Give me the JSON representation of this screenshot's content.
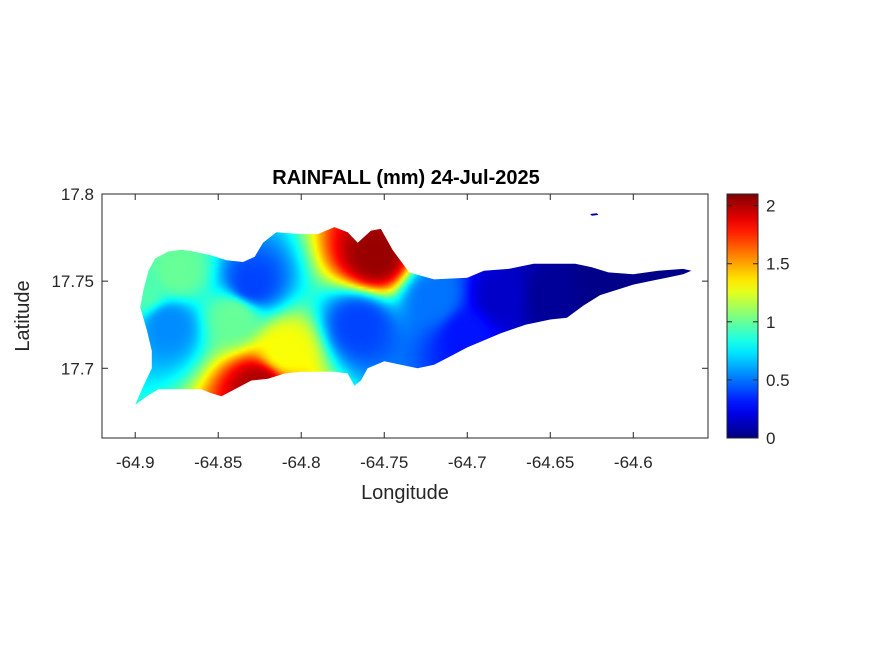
{
  "chart_data": {
    "type": "heatmap",
    "title": "RAINFALL (mm) 24-Jul-2025",
    "xlabel": "Longitude",
    "ylabel": "Latitude",
    "xlim": [
      -64.92,
      -64.555
    ],
    "ylim": [
      17.66,
      17.8
    ],
    "xticks": [
      -64.9,
      -64.85,
      -64.8,
      -64.75,
      -64.7,
      -64.65,
      -64.6
    ],
    "xtick_labels": [
      "-64.9",
      "-64.85",
      "-64.8",
      "-64.75",
      "-64.7",
      "-64.65",
      "-64.6"
    ],
    "yticks": [
      17.7,
      17.75,
      17.8
    ],
    "ytick_labels": [
      "17.7",
      "17.75",
      "17.8"
    ],
    "colormap": "jet",
    "colorbar": {
      "range": [
        0,
        2.1
      ],
      "ticks": [
        0,
        0.5,
        1,
        1.5,
        2
      ],
      "tick_labels": [
        "0",
        "0.5",
        "1",
        "1.5",
        "2"
      ]
    },
    "legend": "none",
    "grid": false,
    "z_unit": "mm",
    "rainfall_peaks": [
      {
        "lon": -64.755,
        "lat": 17.764,
        "value": 2.05
      },
      {
        "lon": -64.825,
        "lat": 17.69,
        "value": 2.0
      },
      {
        "lon": -64.81,
        "lat": 17.71,
        "value": 1.3
      },
      {
        "lon": -64.84,
        "lat": 17.73,
        "value": 1.0
      },
      {
        "lon": -64.875,
        "lat": 17.755,
        "value": 1.0
      },
      {
        "lon": -64.895,
        "lat": 17.745,
        "value": 0.95
      },
      {
        "lon": -64.83,
        "lat": 17.748,
        "value": 0.4
      },
      {
        "lon": -64.88,
        "lat": 17.725,
        "value": 0.55
      },
      {
        "lon": -64.765,
        "lat": 17.725,
        "value": 0.4
      },
      {
        "lon": -64.72,
        "lat": 17.74,
        "value": 0.5
      },
      {
        "lon": -64.7,
        "lat": 17.72,
        "value": 0.3
      },
      {
        "lon": -64.68,
        "lat": 17.74,
        "value": 0.15
      },
      {
        "lon": -64.65,
        "lat": 17.74,
        "value": 0.05
      },
      {
        "lon": -64.62,
        "lat": 17.745,
        "value": 0.02
      },
      {
        "lon": -64.58,
        "lat": 17.753,
        "value": 0.02
      }
    ],
    "island_outline": [
      [
        -64.9,
        17.679
      ],
      [
        -64.893,
        17.684
      ],
      [
        -64.886,
        17.688
      ],
      [
        -64.875,
        17.688
      ],
      [
        -64.86,
        17.688
      ],
      [
        -64.855,
        17.686
      ],
      [
        -64.848,
        17.684
      ],
      [
        -64.84,
        17.688
      ],
      [
        -64.83,
        17.693
      ],
      [
        -64.82,
        17.694
      ],
      [
        -64.81,
        17.697
      ],
      [
        -64.8,
        17.698
      ],
      [
        -64.79,
        17.698
      ],
      [
        -64.78,
        17.698
      ],
      [
        -64.772,
        17.697
      ],
      [
        -64.768,
        17.69
      ],
      [
        -64.764,
        17.693
      ],
      [
        -64.76,
        17.7
      ],
      [
        -64.75,
        17.704
      ],
      [
        -64.74,
        17.702
      ],
      [
        -64.73,
        17.7
      ],
      [
        -64.72,
        17.702
      ],
      [
        -64.71,
        17.707
      ],
      [
        -64.7,
        17.712
      ],
      [
        -64.69,
        17.716
      ],
      [
        -64.68,
        17.72
      ],
      [
        -64.665,
        17.725
      ],
      [
        -64.65,
        17.728
      ],
      [
        -64.64,
        17.729
      ],
      [
        -64.63,
        17.736
      ],
      [
        -64.62,
        17.742
      ],
      [
        -64.61,
        17.745
      ],
      [
        -64.6,
        17.748
      ],
      [
        -64.59,
        17.75
      ],
      [
        -64.58,
        17.752
      ],
      [
        -64.57,
        17.754
      ],
      [
        -64.565,
        17.756
      ],
      [
        -64.57,
        17.757
      ],
      [
        -64.585,
        17.756
      ],
      [
        -64.6,
        17.754
      ],
      [
        -64.615,
        17.755
      ],
      [
        -64.625,
        17.758
      ],
      [
        -64.635,
        17.76
      ],
      [
        -64.65,
        17.76
      ],
      [
        -64.66,
        17.76
      ],
      [
        -64.675,
        17.757
      ],
      [
        -64.69,
        17.756
      ],
      [
        -64.7,
        17.752
      ],
      [
        -64.72,
        17.751
      ],
      [
        -64.735,
        17.755
      ],
      [
        -64.745,
        17.768
      ],
      [
        -64.752,
        17.78
      ],
      [
        -64.758,
        17.779
      ],
      [
        -64.766,
        17.772
      ],
      [
        -64.772,
        17.778
      ],
      [
        -64.78,
        17.781
      ],
      [
        -64.79,
        17.777
      ],
      [
        -64.8,
        17.777
      ],
      [
        -64.815,
        17.778
      ],
      [
        -64.823,
        17.772
      ],
      [
        -64.828,
        17.764
      ],
      [
        -64.835,
        17.761
      ],
      [
        -64.845,
        17.762
      ],
      [
        -64.855,
        17.765
      ],
      [
        -64.865,
        17.767
      ],
      [
        -64.872,
        17.768
      ],
      [
        -64.88,
        17.767
      ],
      [
        -64.888,
        17.763
      ],
      [
        -64.892,
        17.756
      ],
      [
        -64.895,
        17.745
      ],
      [
        -64.897,
        17.735
      ],
      [
        -64.893,
        17.722
      ],
      [
        -64.89,
        17.71
      ],
      [
        -64.89,
        17.7
      ],
      [
        -64.895,
        17.69
      ],
      [
        -64.9,
        17.679
      ]
    ],
    "islet_outline": [
      [
        -64.626,
        17.7885
      ],
      [
        -64.622,
        17.789
      ],
      [
        -64.621,
        17.788
      ],
      [
        -64.625,
        17.7875
      ]
    ]
  }
}
